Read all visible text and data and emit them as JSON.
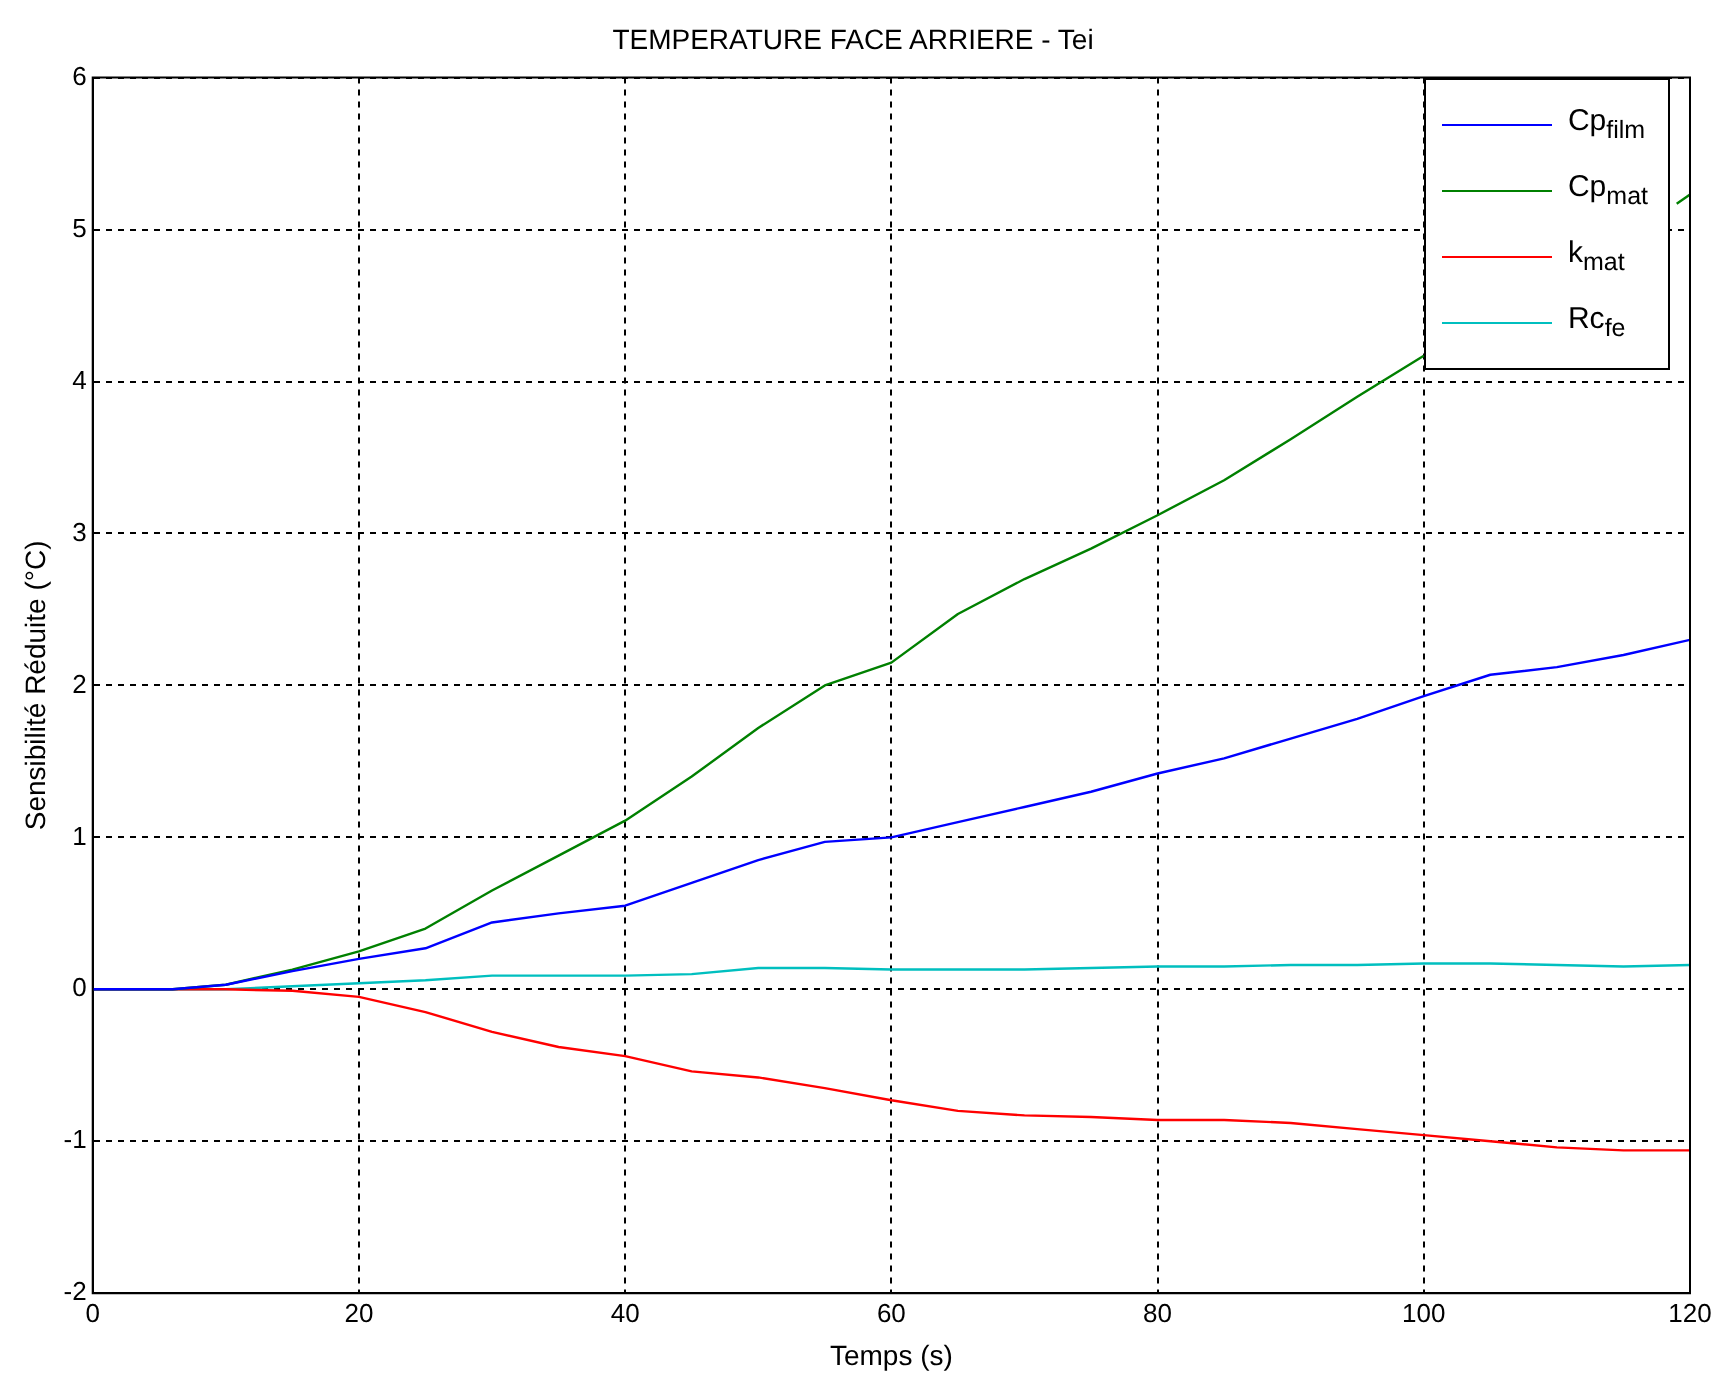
{
  "chart_data": {
    "type": "line",
    "title": "TEMPERATURE FACE ARRIERE - Tei",
    "xlabel": "Temps (s)",
    "ylabel": "Sensibilité Réduite (°C)",
    "x": [
      0,
      6,
      10,
      15,
      20,
      25,
      30,
      35,
      40,
      45,
      50,
      55,
      60,
      65,
      70,
      75,
      80,
      85,
      90,
      95,
      100,
      105,
      110,
      115,
      120
    ],
    "series": [
      {
        "name": "Cp$_{film}$",
        "color": "#0000ff",
        "values": [
          0,
          0,
          0.03,
          0.12,
          0.2,
          0.27,
          0.44,
          0.5,
          0.55,
          0.7,
          0.85,
          0.97,
          1.0,
          1.1,
          1.2,
          1.3,
          1.42,
          1.52,
          1.65,
          1.78,
          1.93,
          2.07,
          2.12,
          2.2,
          2.3
        ]
      },
      {
        "name": "Cp$_{mat}$",
        "color": "#008000",
        "x": [
          0,
          6,
          10,
          15,
          20,
          25,
          30,
          35,
          40,
          45,
          50,
          55,
          60,
          65,
          70,
          75,
          80,
          85,
          90,
          95,
          100,
          105,
          110,
          115,
          119,
          120
        ],
        "values": [
          0,
          0,
          0.03,
          0.13,
          0.25,
          0.4,
          0.65,
          0.88,
          1.11,
          1.4,
          1.72,
          2.0,
          2.15,
          2.47,
          2.7,
          2.9,
          3.12,
          3.35,
          3.62,
          3.9,
          4.17,
          null,
          null,
          null,
          5.17,
          5.23
        ]
      },
      {
        "name": "k$_{mat}$",
        "color": "#ff0000",
        "values": [
          0,
          0,
          0,
          -0.01,
          -0.05,
          -0.15,
          -0.28,
          -0.38,
          -0.44,
          -0.54,
          -0.58,
          -0.65,
          -0.73,
          -0.8,
          -0.83,
          -0.84,
          -0.86,
          -0.86,
          -0.88,
          -0.92,
          -0.96,
          -1.0,
          -1.04,
          -1.06,
          -1.06
        ]
      },
      {
        "name": "Rc$_{fe}$",
        "color": "#00bfbf",
        "values": [
          0,
          0,
          0,
          0.02,
          0.04,
          0.06,
          0.09,
          0.09,
          0.09,
          0.1,
          0.14,
          0.14,
          0.13,
          0.13,
          0.13,
          0.14,
          0.15,
          0.15,
          0.16,
          0.16,
          0.17,
          0.17,
          0.16,
          0.15,
          0.16
        ]
      }
    ],
    "xlim": [
      0,
      120
    ],
    "xticks": [
      0,
      20,
      40,
      60,
      80,
      100,
      120
    ],
    "ylim": [
      -2,
      6
    ],
    "yticks": [
      -2,
      -1,
      0,
      1,
      2,
      3,
      4,
      5,
      6
    ],
    "grid": true,
    "legend": "top right",
    "line_style": "solid",
    "marker": "none"
  }
}
